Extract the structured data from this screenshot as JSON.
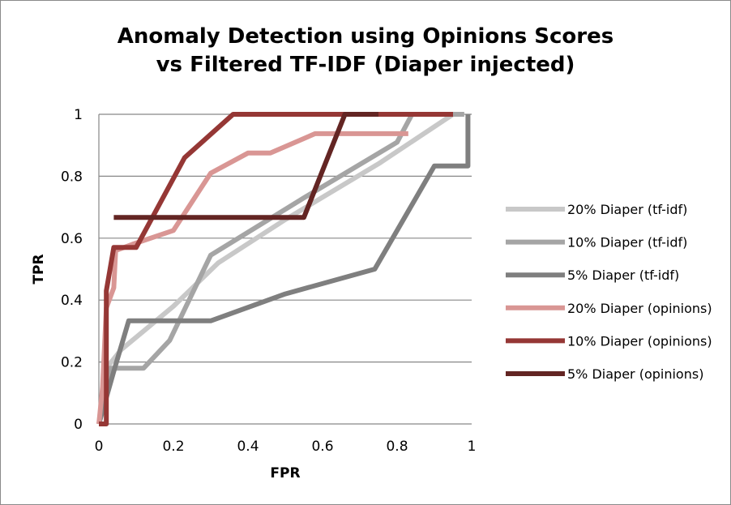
{
  "chart_data": {
    "type": "line",
    "title_lines": [
      "Anomaly Detection using Opinions Scores",
      "vs Filtered TF-IDF (Diaper injected)"
    ],
    "xlabel": "FPR",
    "ylabel": "TPR",
    "xlim": [
      0,
      1
    ],
    "ylim": [
      0,
      1
    ],
    "x_ticks": [
      {
        "value": 0,
        "label": "0"
      },
      {
        "value": 0.2,
        "label": "0.2"
      },
      {
        "value": 0.4,
        "label": "0.4"
      },
      {
        "value": 0.6,
        "label": "0.6"
      },
      {
        "value": 0.8,
        "label": "0.8"
      },
      {
        "value": 1,
        "label": "1"
      }
    ],
    "y_ticks": [
      {
        "value": 0,
        "label": "0"
      },
      {
        "value": 0.2,
        "label": "0.2"
      },
      {
        "value": 0.4,
        "label": "0.4"
      },
      {
        "value": 0.6,
        "label": "0.6"
      },
      {
        "value": 0.8,
        "label": "0.8"
      },
      {
        "value": 1,
        "label": "1"
      }
    ],
    "grid": "horizontal",
    "legend_position": "right",
    "series": [
      {
        "name": "20% Diaper (tf-idf)",
        "color": "#c8c8c8",
        "points": [
          [
            0,
            0
          ],
          [
            0.02,
            0.18
          ],
          [
            0.06,
            0.24
          ],
          [
            0.12,
            0.3
          ],
          [
            0.2,
            0.38
          ],
          [
            0.32,
            0.52
          ],
          [
            0.5,
            0.66
          ],
          [
            0.75,
            0.84
          ],
          [
            0.95,
            1.0
          ],
          [
            0.98,
            1.0
          ]
        ]
      },
      {
        "name": "10% Diaper (tf-idf)",
        "color": "#a5a5a5",
        "points": [
          [
            0,
            0
          ],
          [
            0.02,
            0.09
          ],
          [
            0.03,
            0.18
          ],
          [
            0.06,
            0.18
          ],
          [
            0.12,
            0.18
          ],
          [
            0.19,
            0.27
          ],
          [
            0.3,
            0.545
          ],
          [
            0.55,
            0.73
          ],
          [
            0.8,
            0.91
          ],
          [
            0.84,
            1.0
          ],
          [
            0.98,
            1.0
          ]
        ]
      },
      {
        "name": "5% Diaper (tf-idf)",
        "color": "#7f7f7f",
        "points": [
          [
            0,
            0
          ],
          [
            0.04,
            0.17
          ],
          [
            0.08,
            0.333
          ],
          [
            0.3,
            0.333
          ],
          [
            0.5,
            0.42
          ],
          [
            0.74,
            0.5
          ],
          [
            0.9,
            0.833
          ],
          [
            0.99,
            0.833
          ],
          [
            0.99,
            1.0
          ]
        ]
      },
      {
        "name": "20% Diaper (opinions)",
        "color": "#d99694",
        "points": [
          [
            0,
            0
          ],
          [
            0.01,
            0.12
          ],
          [
            0.02,
            0.375
          ],
          [
            0.04,
            0.44
          ],
          [
            0.045,
            0.56
          ],
          [
            0.09,
            0.58
          ],
          [
            0.2,
            0.625
          ],
          [
            0.3,
            0.81
          ],
          [
            0.4,
            0.875
          ],
          [
            0.46,
            0.875
          ],
          [
            0.58,
            0.9375
          ],
          [
            0.83,
            0.9375
          ]
        ]
      },
      {
        "name": "10% Diaper (opinions)",
        "color": "#953735",
        "points": [
          [
            0,
            0
          ],
          [
            0.02,
            0
          ],
          [
            0.02,
            0.43
          ],
          [
            0.04,
            0.57
          ],
          [
            0.1,
            0.57
          ],
          [
            0.23,
            0.86
          ],
          [
            0.36,
            1.0
          ],
          [
            0.95,
            1.0
          ]
        ]
      },
      {
        "name": "5% Diaper (opinions)",
        "color": "#632523",
        "points": [
          [
            0.04,
            0.667
          ],
          [
            0.55,
            0.667
          ],
          [
            0.66,
            1.0
          ],
          [
            0.75,
            1.0
          ]
        ]
      }
    ]
  }
}
